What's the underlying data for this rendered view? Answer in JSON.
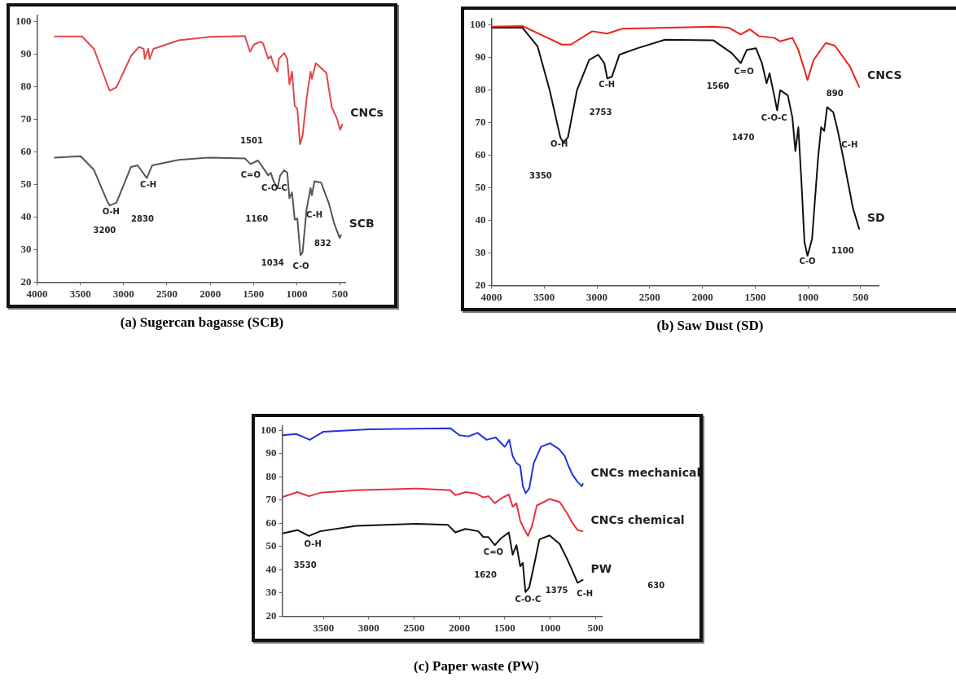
{
  "chart_data": [
    {
      "type": "line",
      "title": "(a) Sugercan bagasse (SCB)",
      "xlim": [
        4000,
        440
      ],
      "xticks": [
        4000,
        3500,
        3000,
        2500,
        2000,
        1500,
        1000,
        500
      ],
      "ylim": [
        20,
        102
      ],
      "yticks": [
        20,
        30,
        40,
        50,
        60,
        70,
        80,
        90,
        100
      ],
      "grid": false,
      "legend": false,
      "marker": "none",
      "series": [
        {
          "name": "CNCs",
          "color": "#e0474c",
          "x": [
            3795,
            3480,
            3343,
            3190,
            3160,
            3083,
            2915,
            2823,
            2768,
            2756,
            2716,
            2700,
            2655,
            2365,
            2000,
            1600,
            1540,
            1495,
            1420,
            1390,
            1329,
            1300,
            1268,
            1222,
            1207,
            1146,
            1110,
            1085,
            1055,
            1024,
            994,
            963,
            933,
            887,
            841,
            826,
            780,
            658,
            597,
            536,
            499,
            475
          ],
          "values": [
            95.5,
            95.5,
            91.7,
            80.8,
            78.8,
            79.9,
            89.5,
            92.3,
            91.7,
            88.6,
            91.7,
            88.6,
            91.7,
            94.3,
            95.4,
            95.6,
            90.8,
            93,
            93.9,
            93.4,
            88.6,
            89.5,
            86.9,
            84.7,
            88.6,
            90.4,
            88.6,
            80.8,
            84.7,
            74.2,
            73.3,
            62.4,
            65,
            76.4,
            84.7,
            82.5,
            87.3,
            84.3,
            73.8,
            70.3,
            66.8,
            68.5
          ]
        },
        {
          "name": "SCB",
          "color": "#555555",
          "x": [
            3795,
            3496,
            3343,
            3190,
            3160,
            3083,
            2915,
            2838,
            2732,
            2670,
            2365,
            2000,
            1600,
            1533,
            1448,
            1329,
            1300,
            1268,
            1222,
            1192,
            1146,
            1110,
            1085,
            1055,
            1024,
            994,
            957,
            933,
            887,
            841,
            826,
            795,
            719,
            628,
            566,
            505,
            490
          ],
          "values": [
            58.3,
            58.7,
            54.5,
            44.9,
            43.6,
            44.4,
            55.4,
            55.9,
            52,
            55.9,
            57.6,
            58.3,
            58,
            56.3,
            57.4,
            52.8,
            53.6,
            51,
            48.9,
            52.8,
            54.4,
            53.7,
            45.8,
            47.6,
            39.2,
            39.6,
            28.3,
            29.2,
            42.3,
            48.9,
            46.7,
            51,
            50.6,
            44.1,
            37.9,
            33.6,
            34.5
          ]
        }
      ],
      "annotations": [
        "1501",
        "C=O",
        "C-H",
        "2830",
        "O-H",
        "3200",
        "C-O-C",
        "1160",
        "C-H",
        "832",
        "1034",
        "C-O"
      ]
    },
    {
      "type": "line",
      "title": "(b) Saw Dust (SD)",
      "xlim": [
        4000,
        330
      ],
      "xticks": [
        4000,
        3500,
        3000,
        2500,
        2000,
        1500,
        1000,
        500
      ],
      "ylim": [
        20,
        102
      ],
      "yticks": [
        20,
        30,
        40,
        50,
        60,
        70,
        80,
        90,
        100
      ],
      "grid": false,
      "legend": false,
      "marker": "none",
      "series": [
        {
          "name": "CNCS",
          "color": "#e8221c",
          "x": [
            4000,
            3707,
            3534,
            3333,
            3247,
            3045,
            2902,
            2758,
            1895,
            1752,
            1637,
            1550,
            1464,
            1320,
            1263,
            1148,
            1091,
            1004,
            946,
            831,
            745,
            601,
            515
          ],
          "values": [
            99.5,
            99.7,
            97.1,
            94,
            94,
            98.1,
            97.4,
            98.9,
            99.5,
            99.2,
            97.1,
            98.7,
            96.6,
            96.1,
            95,
            96.1,
            92.4,
            83.1,
            89.3,
            94.5,
            93.7,
            87.2,
            81
          ]
        },
        {
          "name": "SD",
          "color": "#111111",
          "x": [
            4000,
            3707,
            3563,
            3448,
            3347,
            3319,
            3275,
            3189,
            3074,
            2988,
            2930,
            2902,
            2859,
            2787,
            2614,
            2355,
            1895,
            1723,
            1637,
            1579,
            1493,
            1436,
            1392,
            1364,
            1320,
            1292,
            1263,
            1191,
            1148,
            1119,
            1091,
            1062,
            1033,
            1004,
            961,
            904,
            875,
            846,
            818,
            760,
            717,
            659,
            616,
            573,
            515
          ],
          "values": [
            99.2,
            99.2,
            93.5,
            80,
            65.5,
            63.9,
            65.5,
            80,
            89.3,
            90.9,
            88.3,
            83.6,
            84.1,
            90.9,
            92.9,
            95.5,
            95.3,
            91.4,
            88.3,
            92.4,
            92.9,
            88.3,
            82.1,
            85.2,
            78.4,
            73.8,
            80,
            78.4,
            71.7,
            61.3,
            68.6,
            52,
            33.3,
            29.1,
            34.3,
            59.2,
            68.6,
            67.5,
            74.8,
            73.2,
            67.5,
            58.2,
            50.9,
            43.7,
            37.4
          ]
        }
      ],
      "annotations": [
        "C-H",
        "2753",
        "O-H",
        "3350",
        "C=O",
        "1560",
        "C-O-C",
        "1470",
        "890",
        "C-H",
        "C-O",
        "1100"
      ]
    },
    {
      "type": "line",
      "title": "(c) Paper waste (PW)",
      "xlim": [
        3955,
        430
      ],
      "xticks": [
        3500,
        3000,
        2500,
        2000,
        1500,
        1000,
        500
      ],
      "ylim": [
        20,
        102
      ],
      "yticks": [
        20,
        30,
        40,
        50,
        60,
        70,
        80,
        90,
        100
      ],
      "grid": false,
      "legend": false,
      "marker": "none",
      "series": [
        {
          "name": "CNCs mechanical",
          "color": "#2233dd",
          "x": [
            3950,
            3800,
            3650,
            3500,
            3000,
            2100,
            2000,
            1900,
            1800,
            1700,
            1600,
            1500,
            1450,
            1413,
            1371,
            1330,
            1300,
            1270,
            1230,
            1180,
            1100,
            1000,
            900,
            838,
            800,
            753,
            700,
            650,
            640
          ],
          "values": [
            98,
            98.5,
            96,
            99.5,
            100.5,
            101,
            98,
            97.5,
            99,
            96,
            97,
            93,
            96,
            89,
            86,
            84.8,
            76,
            73,
            75,
            86,
            93,
            94.5,
            92,
            89,
            85,
            81,
            78,
            76,
            77
          ]
        },
        {
          "name": "CNCs chemical",
          "color": "#e8303a",
          "x": [
            3941,
            3787,
            3660,
            3534,
            3140,
            2466,
            2101,
            2045,
            1989,
            1933,
            1820,
            1736,
            1680,
            1610,
            1540,
            1455,
            1413,
            1371,
            1329,
            1287,
            1244,
            1202,
            1146,
            1006,
            894,
            810,
            753,
            697,
            641
          ],
          "values": [
            71.5,
            73.5,
            71.7,
            73.2,
            74.3,
            75,
            74.3,
            72.2,
            72.8,
            73.5,
            72.9,
            71.2,
            71.7,
            68.7,
            70.7,
            72.5,
            67.2,
            68.7,
            61.1,
            57.6,
            54.6,
            58.6,
            67.7,
            70.5,
            69.2,
            64.2,
            60.1,
            57.1,
            56.6
          ]
        },
        {
          "name": "PW",
          "color": "#111111",
          "x": [
            3941,
            3787,
            3660,
            3534,
            3140,
            2466,
            2129,
            2045,
            1933,
            1792,
            1736,
            1680,
            1610,
            1540,
            1455,
            1413,
            1371,
            1329,
            1301,
            1272,
            1230,
            1174,
            1118,
            1006,
            894,
            810,
            753,
            697,
            641
          ],
          "values": [
            55.8,
            57.1,
            54.6,
            56.6,
            58.9,
            59.8,
            59.4,
            56.1,
            57.6,
            56.6,
            54.1,
            54.1,
            50.6,
            53.6,
            56.1,
            46.5,
            50.6,
            41.5,
            43,
            30.4,
            32.4,
            42.5,
            53.1,
            54.8,
            51.1,
            44.5,
            39.5,
            34.4,
            35.6
          ]
        }
      ],
      "annotations": [
        "O-H",
        "3530",
        "C=O",
        "1620",
        "C-O-C",
        "1375",
        "C-H",
        "630"
      ]
    }
  ]
}
